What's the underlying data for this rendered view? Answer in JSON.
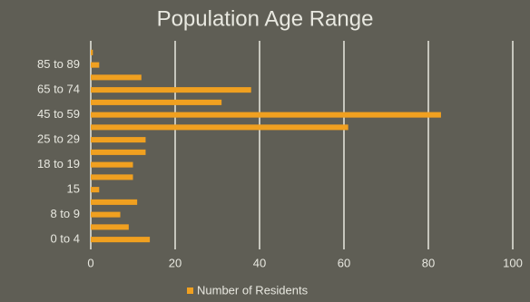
{
  "chart_data": {
    "type": "hbar",
    "title": "Population Age Range",
    "categories": [
      "0 to 4",
      null,
      "8 to 9",
      null,
      "15",
      null,
      "18 to 19",
      null,
      "25 to 29",
      null,
      "45 to 59",
      null,
      "65 to 74",
      null,
      "85 to 89",
      null
    ],
    "series": [
      {
        "name": "Number of Residents",
        "color": "#f0a020",
        "values": [
          14,
          9,
          7,
          11,
          2,
          10,
          10,
          13,
          13,
          61,
          83,
          31,
          38,
          12,
          2,
          0.5
        ]
      }
    ],
    "xlim": [
      0,
      100
    ],
    "xticks": [
      0,
      20,
      40,
      60,
      80,
      100
    ],
    "grid": true,
    "legend": "bottom"
  }
}
